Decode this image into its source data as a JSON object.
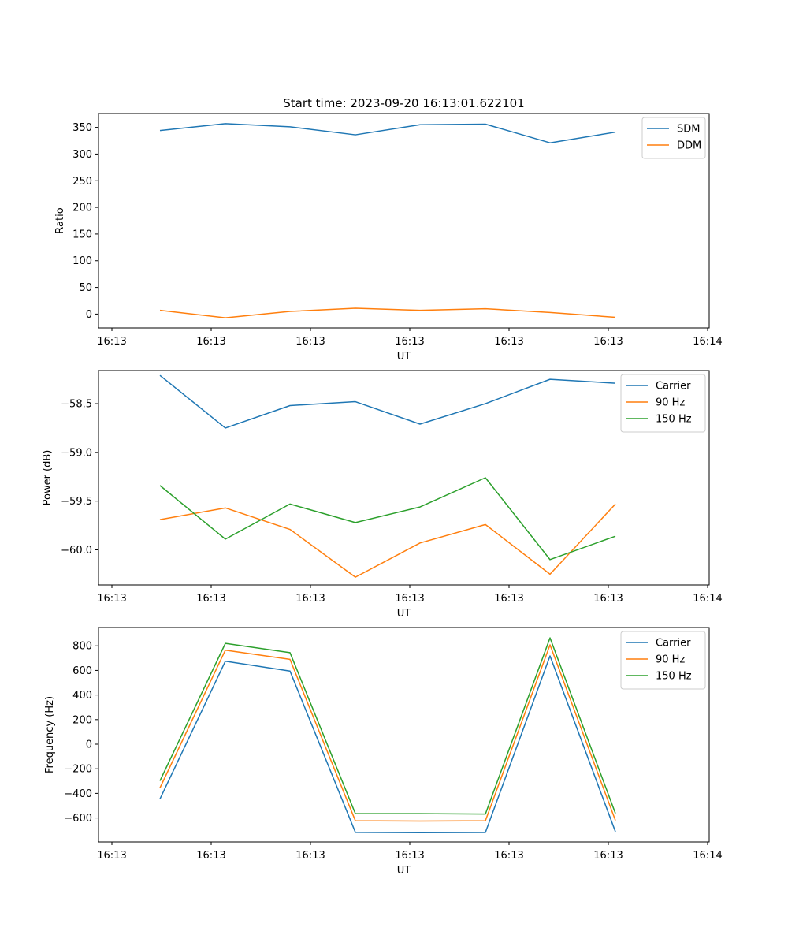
{
  "figure": {
    "title": "Start time: 2023-09-20 16:13:01.622101"
  },
  "chart_data": [
    {
      "type": "line",
      "xlabel": "UT",
      "ylabel": "Ratio",
      "x_ticks": [
        "16:13",
        "16:13",
        "16:13",
        "16:13",
        "16:13",
        "16:13",
        "16:14"
      ],
      "y_ticks": [
        "0",
        "50",
        "100",
        "150",
        "200",
        "250",
        "300",
        "350"
      ],
      "ylim": [
        -26,
        376
      ],
      "grid": false,
      "legend_position": "top-right",
      "series": [
        {
          "name": "SDM",
          "color": "#1f77b4",
          "values": [
            344,
            357,
            351,
            336,
            355,
            356,
            321,
            341
          ]
        },
        {
          "name": "DDM",
          "color": "#ff7f0e",
          "values": [
            7,
            -7,
            5,
            11,
            7,
            10,
            3,
            -6
          ]
        }
      ]
    },
    {
      "type": "line",
      "xlabel": "UT",
      "ylabel": "Power (dB)",
      "x_ticks": [
        "16:13",
        "16:13",
        "16:13",
        "16:13",
        "16:13",
        "16:13",
        "16:14"
      ],
      "y_ticks": [
        "−60.0",
        "−59.5",
        "−59.0",
        "−58.5"
      ],
      "ylim": [
        -60.36,
        -58.16
      ],
      "grid": false,
      "legend_position": "top-right",
      "series": [
        {
          "name": "Carrier",
          "color": "#1f77b4",
          "values": [
            -58.21,
            -58.75,
            -58.52,
            -58.48,
            -58.71,
            -58.5,
            -58.25,
            -58.29
          ]
        },
        {
          "name": "90 Hz",
          "color": "#ff7f0e",
          "values": [
            -59.69,
            -59.57,
            -59.79,
            -60.28,
            -59.93,
            -59.74,
            -60.25,
            -59.53
          ]
        },
        {
          "name": "150 Hz",
          "color": "#2ca02c",
          "values": [
            -59.34,
            -59.89,
            -59.53,
            -59.72,
            -59.56,
            -59.26,
            -60.1,
            -59.86
          ]
        }
      ]
    },
    {
      "type": "line",
      "xlabel": "UT",
      "ylabel": "Frequency (Hz)",
      "x_ticks": [
        "16:13",
        "16:13",
        "16:13",
        "16:13",
        "16:13",
        "16:13",
        "16:14"
      ],
      "y_ticks": [
        "−600",
        "−400",
        "−200",
        "0",
        "200",
        "400",
        "600",
        "800"
      ],
      "ylim": [
        -795,
        949
      ],
      "grid": false,
      "legend_position": "top-right",
      "series": [
        {
          "name": "Carrier",
          "color": "#1f77b4",
          "values": [
            -445,
            675,
            595,
            -717,
            -720,
            -718,
            718,
            -712
          ]
        },
        {
          "name": "90 Hz",
          "color": "#ff7f0e",
          "values": [
            -355,
            765,
            690,
            -623,
            -625,
            -623,
            808,
            -620
          ]
        },
        {
          "name": "150 Hz",
          "color": "#2ca02c",
          "values": [
            -298,
            820,
            745,
            -565,
            -565,
            -568,
            865,
            -563
          ]
        }
      ]
    }
  ]
}
